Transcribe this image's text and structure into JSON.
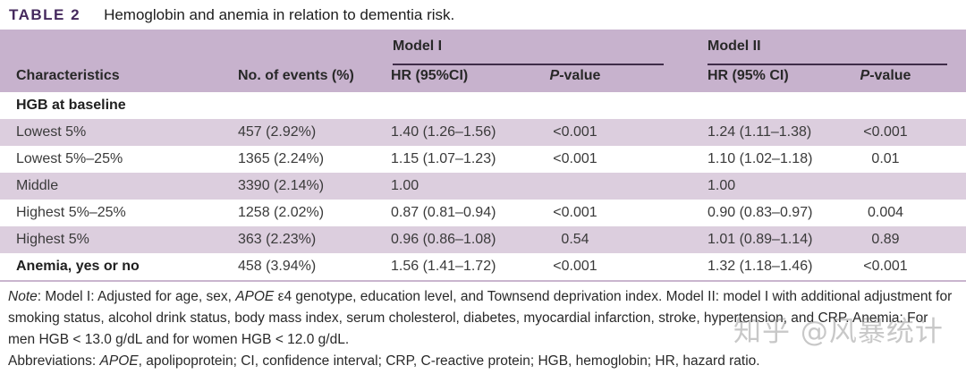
{
  "caption": {
    "label": "TABLE 2",
    "text": "Hemoglobin and anemia in relation to dementia risk."
  },
  "table": {
    "group_headers": [
      "Model I",
      "Model II"
    ],
    "columns": {
      "characteristics": "Characteristics",
      "events": "No. of events (%)",
      "hr_model1": "HR (95%CI)",
      "p_italic": "P",
      "p_rest": "-value",
      "hr_model2": "HR (95% CI)"
    },
    "section_header": "HGB at baseline",
    "rows": [
      {
        "label": "Lowest 5%",
        "events": "457 (2.92%)",
        "hr1": "1.40 (1.26–1.56)",
        "p1": "<0.001",
        "hr2": "1.24 (1.11–1.38)",
        "p2": "<0.001"
      },
      {
        "label": "Lowest 5%–25%",
        "events": "1365 (2.24%)",
        "hr1": "1.15 (1.07–1.23)",
        "p1": "<0.001",
        "hr2": "1.10 (1.02–1.18)",
        "p2": "0.01"
      },
      {
        "label": "Middle",
        "events": "3390 (2.14%)",
        "hr1": "1.00",
        "p1": "",
        "hr2": "1.00",
        "p2": ""
      },
      {
        "label": "Highest 5%–25%",
        "events": "1258 (2.02%)",
        "hr1": "0.87 (0.81–0.94)",
        "p1": "<0.001",
        "hr2": "0.90 (0.83–0.97)",
        "p2": "0.004"
      },
      {
        "label": "Highest 5%",
        "events": "363 (2.23%)",
        "hr1": "0.96 (0.86–1.08)",
        "p1": "0.54",
        "hr2": "1.01 (0.89–1.14)",
        "p2": "0.89"
      },
      {
        "label": "Anemia, yes or no",
        "events": "458 (3.94%)",
        "hr1": "1.56 (1.41–1.72)",
        "p1": "<0.001",
        "hr2": "1.32 (1.18–1.46)",
        "p2": "<0.001"
      }
    ]
  },
  "notes": {
    "note_s1": "Note",
    "note_s2": ": Model I: Adjusted for age, sex, ",
    "note_s3": "APOE",
    "note_s4": " ε4 genotype, education level, and Townsend deprivation index. Model II: model I with additional adjustment for smoking status, alcohol drink status, body mass index, serum cholesterol, diabetes, myocardial infarction, stroke, hypertension, and CRP. Anemia: For men HGB < 13.0 g/dL and for women HGB < 12.0 g/dL.",
    "abbrev_s1": "Abbreviations: ",
    "abbrev_s2": "APOE",
    "abbrev_s3": ", apolipoprotein; CI, confidence interval; CRP, C-reactive protein; HGB, hemoglobin; HR, hazard ratio."
  },
  "watermark": "知乎 @风暴统计",
  "colors": {
    "table_label_purple": "#45295d",
    "header_band": "#c7b2cd",
    "row_stripe": "#dccede",
    "group_rule": "#3f2c49",
    "bottom_rule": "#c9b5ce"
  }
}
